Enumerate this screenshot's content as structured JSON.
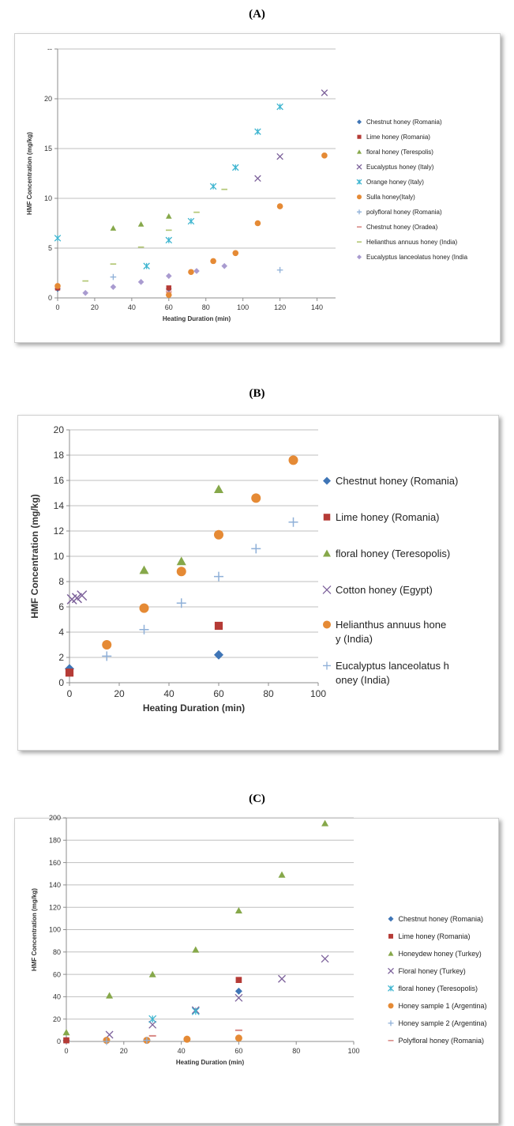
{
  "panel_labels": [
    "(A)",
    "(B)",
    "(C)"
  ],
  "colors": {
    "steelblue": "#3f75b6",
    "red": "#b53b36",
    "green": "#86a84a",
    "purple": "#7d629b",
    "cyan": "#3eb5d0",
    "orange": "#e58a35",
    "lightblue": "#8fb0d8",
    "pink": "#d98a86",
    "olive": "#b3c775",
    "lavender": "#a99bd0",
    "grid": "#bfbfbf"
  },
  "chart_data": [
    {
      "type": "scatter",
      "panel": "(A)",
      "ylabel": "HMF Concentration (mg/kg)",
      "xlabel": "Heating Duration (min)",
      "xlim": [
        0,
        150
      ],
      "ylim": [
        0,
        25
      ],
      "xticks": [
        0,
        20,
        40,
        60,
        80,
        100,
        120,
        140
      ],
      "yticks": [
        0,
        5,
        10,
        15,
        20,
        25
      ],
      "ytick_labels": [
        "0",
        "5",
        "10",
        "15",
        "20",
        "--"
      ],
      "legend_position": "right",
      "series": [
        {
          "name": "Chestnut honey (Romania)",
          "marker": "diamond",
          "color": "steelblue",
          "points": [
            [
              0,
              0.9
            ],
            [
              60,
              0.9
            ]
          ]
        },
        {
          "name": "Lime honey (Romania)",
          "marker": "square",
          "color": "red",
          "points": [
            [
              0,
              1.0
            ],
            [
              60,
              1.0
            ]
          ]
        },
        {
          "name": "floral honey (Terespolis)",
          "marker": "triangle",
          "color": "green",
          "points": [
            [
              30,
              7.0
            ],
            [
              45,
              7.4
            ],
            [
              60,
              8.2
            ]
          ]
        },
        {
          "name": "Eucalyptus honey (Italy)",
          "marker": "x",
          "color": "purple",
          "points": [
            [
              108,
              12.0
            ],
            [
              120,
              14.2
            ],
            [
              144,
              20.6
            ]
          ]
        },
        {
          "name": "Orange honey (Italy)",
          "marker": "star",
          "color": "cyan",
          "points": [
            [
              0,
              6.0
            ],
            [
              48,
              3.2
            ],
            [
              60,
              5.8
            ],
            [
              72,
              7.7
            ],
            [
              84,
              11.2
            ],
            [
              96,
              13.1
            ],
            [
              108,
              16.7
            ],
            [
              120,
              19.2
            ]
          ]
        },
        {
          "name": "Sulla honey(Italy)",
          "marker": "circle",
          "color": "orange",
          "points": [
            [
              0,
              1.2
            ],
            [
              60,
              0.3
            ],
            [
              72,
              2.6
            ],
            [
              84,
              3.7
            ],
            [
              96,
              4.5
            ],
            [
              108,
              7.5
            ],
            [
              120,
              9.2
            ],
            [
              144,
              14.3
            ]
          ]
        },
        {
          "name": "polyfloral honey (Romania)",
          "marker": "plus",
          "color": "lightblue",
          "points": [
            [
              30,
              2.1
            ],
            [
              120,
              2.8
            ]
          ]
        },
        {
          "name": "Chestnut honey (Oradea)",
          "marker": "dash",
          "color": "pink",
          "points": [
            [
              60,
              0.6
            ]
          ]
        },
        {
          "name": "Helianthus annuus honey (India)",
          "marker": "dash",
          "color": "olive",
          "points": [
            [
              15,
              1.7
            ],
            [
              30,
              3.4
            ],
            [
              45,
              5.1
            ],
            [
              60,
              6.8
            ],
            [
              75,
              8.6
            ],
            [
              90,
              10.9
            ]
          ]
        },
        {
          "name": "Eucalyptus lanceolatus honey (India",
          "marker": "diamond",
          "color": "lavender",
          "points": [
            [
              15,
              0.5
            ],
            [
              30,
              1.1
            ],
            [
              45,
              1.6
            ],
            [
              60,
              2.2
            ],
            [
              75,
              2.7
            ],
            [
              90,
              3.2
            ]
          ]
        }
      ]
    },
    {
      "type": "scatter",
      "panel": "(B)",
      "ylabel": "HMF Concentration (mg/kg)",
      "xlabel": "Heating Duration (min)",
      "xlim": [
        0,
        100
      ],
      "ylim": [
        0,
        20
      ],
      "xticks": [
        0,
        20,
        40,
        60,
        80,
        100
      ],
      "yticks": [
        0,
        2,
        4,
        6,
        8,
        10,
        12,
        14,
        16,
        18,
        20
      ],
      "ytick_labels": [
        "0",
        "2",
        "4",
        "6",
        "8",
        "10",
        "12",
        "14",
        "16",
        "18",
        "20"
      ],
      "legend_position": "right",
      "series": [
        {
          "name": "Chestnut honey (Romania)",
          "marker": "diamond",
          "color": "steelblue",
          "points": [
            [
              0,
              1.1
            ],
            [
              60,
              2.2
            ]
          ]
        },
        {
          "name": "Lime honey (Romania)",
          "marker": "square",
          "color": "red",
          "points": [
            [
              0,
              0.8
            ],
            [
              60,
              4.5
            ]
          ]
        },
        {
          "name": "floral honey (Teresopolis)",
          "marker": "triangle",
          "color": "green",
          "points": [
            [
              30,
              8.9
            ],
            [
              45,
              9.6
            ],
            [
              60,
              15.3
            ]
          ]
        },
        {
          "name": "Cotton honey (Egypt)",
          "marker": "x",
          "color": "purple",
          "points": [
            [
              1,
              6.6
            ],
            [
              3,
              6.7
            ],
            [
              5,
              6.9
            ]
          ]
        },
        {
          "name": "Helianthus annuus honey (India)",
          "marker": "circle",
          "color": "orange",
          "points": [
            [
              15,
              3.0
            ],
            [
              30,
              5.9
            ],
            [
              45,
              8.8
            ],
            [
              60,
              11.7
            ],
            [
              75,
              14.6
            ],
            [
              90,
              17.6
            ]
          ]
        },
        {
          "name": "Eucalyptus lanceolatus honey (India)",
          "marker": "plus",
          "color": "lightblue",
          "points": [
            [
              15,
              2.1
            ],
            [
              30,
              4.2
            ],
            [
              45,
              6.3
            ],
            [
              60,
              8.4
            ],
            [
              75,
              10.6
            ],
            [
              90,
              12.7
            ]
          ]
        }
      ]
    },
    {
      "type": "scatter",
      "panel": "(C)",
      "ylabel": "HMF Concentration (mg/kg)",
      "xlabel": "Heating Duration (min)",
      "xlim": [
        0,
        100
      ],
      "ylim": [
        0,
        200
      ],
      "xticks": [
        0,
        20,
        40,
        60,
        80,
        100
      ],
      "yticks": [
        0,
        20,
        40,
        60,
        80,
        100,
        120,
        140,
        160,
        180,
        200
      ],
      "ytick_labels": [
        "0",
        "20",
        "40",
        "60",
        "80",
        "100",
        "120",
        "140",
        "160",
        "180",
        "200"
      ],
      "legend_position": "right",
      "series": [
        {
          "name": "Chestnut honey (Romania)",
          "marker": "diamond",
          "color": "steelblue",
          "points": [
            [
              0,
              1
            ],
            [
              60,
              45
            ]
          ]
        },
        {
          "name": "Lime honey (Romania)",
          "marker": "square",
          "color": "red",
          "points": [
            [
              0,
              1
            ],
            [
              60,
              55
            ]
          ]
        },
        {
          "name": "Honeydew honey (Turkey)",
          "marker": "triangle",
          "color": "green",
          "points": [
            [
              0,
              8
            ],
            [
              15,
              41
            ],
            [
              30,
              60
            ],
            [
              45,
              82
            ],
            [
              60,
              117
            ],
            [
              75,
              149
            ],
            [
              90,
              195
            ]
          ]
        },
        {
          "name": "Floral honey (Turkey)",
          "marker": "x",
          "color": "purple",
          "points": [
            [
              15,
              6
            ],
            [
              30,
              15
            ],
            [
              45,
              28
            ],
            [
              60,
              39
            ],
            [
              75,
              56
            ],
            [
              90,
              74
            ]
          ]
        },
        {
          "name": "floral honey (Teresopolis)",
          "marker": "star",
          "color": "cyan",
          "points": [
            [
              30,
              20
            ],
            [
              45,
              27
            ]
          ]
        },
        {
          "name": "Honey sample 1 (Argentina)",
          "marker": "circle",
          "color": "orange",
          "points": [
            [
              14,
              1
            ],
            [
              28,
              1
            ],
            [
              42,
              2
            ],
            [
              60,
              3
            ]
          ]
        },
        {
          "name": "Honey sample 2 (Argentina)",
          "marker": "plus",
          "color": "lightblue",
          "points": [
            [
              14,
              0
            ],
            [
              28,
              1
            ]
          ]
        },
        {
          "name": "Polyfloral honey (Romania)",
          "marker": "dash",
          "color": "pink",
          "points": [
            [
              30,
              5
            ],
            [
              60,
              10
            ]
          ]
        }
      ]
    }
  ]
}
